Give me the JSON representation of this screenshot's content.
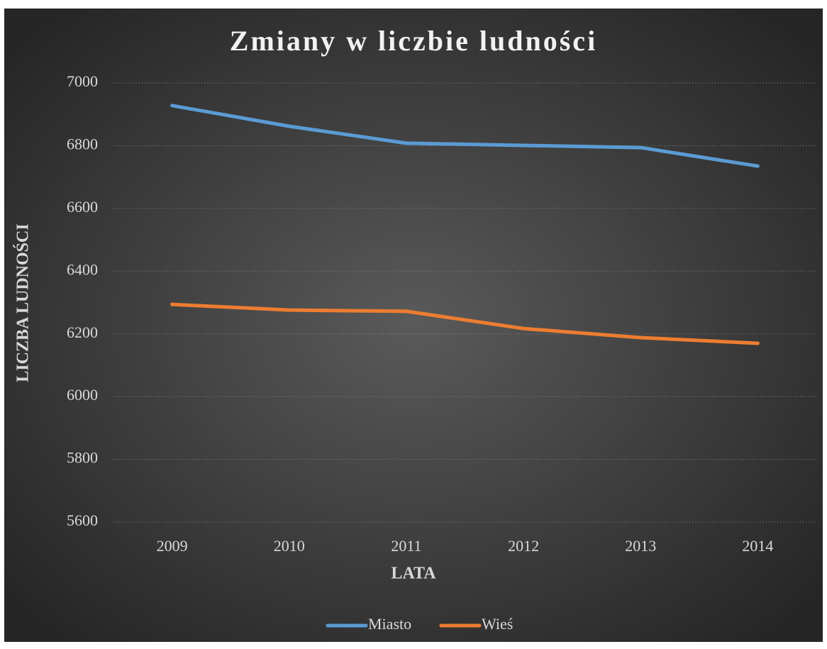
{
  "chart_data": {
    "type": "line",
    "title": "Zmiany w liczbie ludności",
    "x_label": "LATA",
    "y_label": "LICZBA LUDNOŚCI",
    "categories": [
      "2009",
      "2010",
      "2011",
      "2012",
      "2013",
      "2014"
    ],
    "series": [
      {
        "name": "Miasto",
        "color": "#5b9bd5",
        "values": [
          6928,
          6862,
          6808,
          6801,
          6794,
          6735
        ]
      },
      {
        "name": "Wieś",
        "color": "#ed7d31",
        "values": [
          6294,
          6276,
          6272,
          6217,
          6188,
          6170
        ]
      }
    ],
    "ylim": [
      5600,
      7000
    ],
    "yticks": [
      5600,
      5800,
      6000,
      6200,
      6400,
      6600,
      6800,
      7000
    ],
    "grid": true,
    "legend": "bottom"
  }
}
